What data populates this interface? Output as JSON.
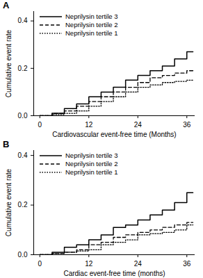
{
  "chart_data": [
    {
      "type": "line",
      "title": "A",
      "x_label": "Cardiovascular event-free time (Months)",
      "y_label": "Cumulative event rate",
      "xlim": [
        -1.5,
        38
      ],
      "ylim": [
        0,
        0.44
      ],
      "xticks": [
        0,
        12,
        24,
        36
      ],
      "yticks": [
        {
          "value": 0,
          "label": "0.0"
        },
        {
          "value": 0.2,
          "label": "0.2"
        },
        {
          "value": 0.4,
          "label": "0.4"
        }
      ],
      "legend": "upper left",
      "series": [
        {
          "name": "Neprilysin tertile 3",
          "color": "#000000",
          "line_style": "solid",
          "x": [
            0,
            3,
            6,
            9,
            12,
            15,
            18,
            21,
            24,
            27,
            30,
            33,
            36,
            37.5
          ],
          "values": [
            0,
            0.01,
            0.03,
            0.05,
            0.08,
            0.1,
            0.12,
            0.15,
            0.17,
            0.19,
            0.21,
            0.24,
            0.27,
            0.27
          ]
        },
        {
          "name": "Neprilysin tertile 2",
          "color": "#000000",
          "line_style": "dashed",
          "x": [
            0,
            3,
            6,
            9,
            12,
            15,
            18,
            21,
            24,
            27,
            30,
            33,
            36,
            37.5
          ],
          "values": [
            0,
            0.01,
            0.02,
            0.04,
            0.06,
            0.08,
            0.1,
            0.12,
            0.14,
            0.16,
            0.17,
            0.18,
            0.19,
            0.19
          ]
        },
        {
          "name": "Neprilysin tertile 1",
          "color": "#000000",
          "line_style": "dotted",
          "x": [
            0,
            3,
            6,
            9,
            12,
            15,
            18,
            21,
            24,
            27,
            30,
            33,
            36,
            37.5
          ],
          "values": [
            0,
            0.005,
            0.01,
            0.02,
            0.04,
            0.06,
            0.08,
            0.1,
            0.12,
            0.13,
            0.14,
            0.145,
            0.15,
            0.15
          ]
        }
      ]
    },
    {
      "type": "line",
      "title": "B",
      "x_label": "Cardiac event-free time (months)",
      "y_label": "Cumulative event rate",
      "xlim": [
        -1.5,
        38
      ],
      "ylim": [
        0,
        0.42
      ],
      "xticks": [
        0,
        12,
        24,
        36
      ],
      "yticks": [
        {
          "value": 0,
          "label": "0.0"
        },
        {
          "value": 0.2,
          "label": "0.2"
        },
        {
          "value": 0.4,
          "label": "0.4"
        }
      ],
      "legend": "upper left",
      "series": [
        {
          "name": "Neprilysin tertile 3",
          "color": "#000000",
          "line_style": "solid",
          "x": [
            0,
            3,
            6,
            9,
            12,
            15,
            18,
            21,
            24,
            27,
            30,
            33,
            36,
            37.5
          ],
          "values": [
            0,
            0.01,
            0.03,
            0.04,
            0.06,
            0.08,
            0.11,
            0.12,
            0.14,
            0.16,
            0.18,
            0.21,
            0.25,
            0.25
          ]
        },
        {
          "name": "Neprilysin tertile 2",
          "color": "#000000",
          "line_style": "dashed",
          "x": [
            0,
            3,
            6,
            9,
            12,
            15,
            18,
            21,
            24,
            27,
            30,
            33,
            36,
            37.5
          ],
          "values": [
            0,
            0.005,
            0.01,
            0.02,
            0.04,
            0.05,
            0.07,
            0.08,
            0.09,
            0.1,
            0.11,
            0.12,
            0.13,
            0.13
          ]
        },
        {
          "name": "Neprilysin tertile 1",
          "color": "#000000",
          "line_style": "dotted",
          "x": [
            0,
            3,
            6,
            9,
            12,
            15,
            18,
            21,
            24,
            27,
            30,
            33,
            36,
            37.5
          ],
          "values": [
            0,
            0.005,
            0.01,
            0.015,
            0.02,
            0.04,
            0.05,
            0.06,
            0.08,
            0.085,
            0.09,
            0.1,
            0.12,
            0.12
          ]
        }
      ]
    }
  ]
}
